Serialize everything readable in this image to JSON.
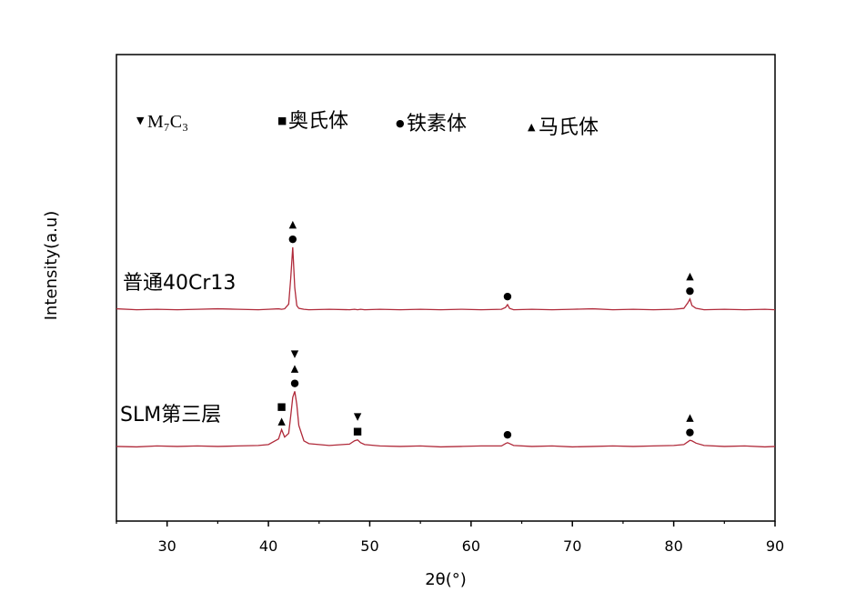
{
  "chart_data": {
    "type": "line",
    "xlabel": "2θ(°)",
    "ylabel": "Intensity(a.u)",
    "xlim": [
      25,
      90
    ],
    "xticks": [
      30,
      40,
      50,
      60,
      70,
      80,
      90
    ],
    "xminorticks": [
      25,
      35,
      45,
      55,
      65,
      75,
      85
    ],
    "ylim": [
      0,
      100
    ],
    "x": [
      25,
      27,
      29,
      31,
      33,
      35,
      37,
      39,
      40,
      41,
      41.3,
      41.6,
      42,
      42.2,
      42.4,
      42.6,
      42.8,
      43,
      43.5,
      44,
      46,
      48,
      48.5,
      48.8,
      49.1,
      49.5,
      51,
      53,
      55,
      57,
      59,
      61,
      63,
      63.4,
      63.6,
      63.8,
      64.2,
      66,
      68,
      70,
      72,
      74,
      76,
      78,
      80,
      81,
      81.4,
      81.6,
      81.8,
      82.2,
      83,
      85,
      87,
      89,
      90
    ],
    "series": [
      {
        "name": "普通40Cr13",
        "color": "#b02a3a",
        "values": [
          45.5,
          45.3,
          45.4,
          45.3,
          45.4,
          45.5,
          45.4,
          45.3,
          45.4,
          45.5,
          45.4,
          45.5,
          46.5,
          52.0,
          58.7,
          50.0,
          46.2,
          45.6,
          45.4,
          45.3,
          45.4,
          45.3,
          45.4,
          45.3,
          45.4,
          45.3,
          45.4,
          45.3,
          45.4,
          45.3,
          45.4,
          45.3,
          45.4,
          45.8,
          46.4,
          45.6,
          45.3,
          45.4,
          45.3,
          45.4,
          45.5,
          45.3,
          45.4,
          45.3,
          45.4,
          45.6,
          46.8,
          47.6,
          46.2,
          45.6,
          45.3,
          45.4,
          45.3,
          45.4,
          45.3
        ]
      },
      {
        "name": "SLM第三层",
        "color": "#b02a3a",
        "values": [
          16.0,
          15.9,
          16.1,
          16.0,
          16.1,
          16.0,
          16.1,
          16.2,
          16.4,
          17.6,
          19.6,
          18.0,
          18.8,
          22.5,
          26.5,
          27.8,
          25.0,
          20.5,
          17.2,
          16.6,
          16.2,
          16.5,
          17.2,
          17.4,
          16.8,
          16.4,
          16.1,
          16.0,
          16.1,
          15.9,
          16.0,
          16.1,
          16.1,
          16.6,
          16.8,
          16.6,
          16.2,
          16.0,
          16.1,
          15.9,
          16.0,
          16.1,
          16.0,
          16.1,
          16.2,
          16.4,
          17.0,
          17.3,
          17.2,
          16.7,
          16.2,
          16.0,
          16.1,
          15.9,
          16.0
        ]
      }
    ],
    "legend": [
      {
        "symbol": "▼",
        "label": "M₇C₃"
      },
      {
        "symbol": "■",
        "label": "奥氏体"
      },
      {
        "symbol": "●",
        "label": "铁素体"
      },
      {
        "symbol": "▲",
        "label": "马氏体"
      }
    ],
    "annotations": [
      {
        "series": 0,
        "x": 42.4,
        "labels": [
          "●",
          "▲"
        ]
      },
      {
        "series": 0,
        "x": 63.6,
        "labels": [
          "●"
        ]
      },
      {
        "series": 0,
        "x": 81.6,
        "labels": [
          "●",
          "▲"
        ]
      },
      {
        "series": 1,
        "x": 41.3,
        "labels": [
          "▲",
          "■"
        ]
      },
      {
        "series": 1,
        "x": 42.6,
        "labels": [
          "●",
          "▲",
          "▼"
        ]
      },
      {
        "series": 1,
        "x": 48.8,
        "labels": [
          "■",
          "▼"
        ]
      },
      {
        "series": 1,
        "x": 63.6,
        "labels": [
          "●"
        ]
      },
      {
        "series": 1,
        "x": 81.6,
        "labels": [
          "●",
          "▲"
        ]
      }
    ]
  }
}
